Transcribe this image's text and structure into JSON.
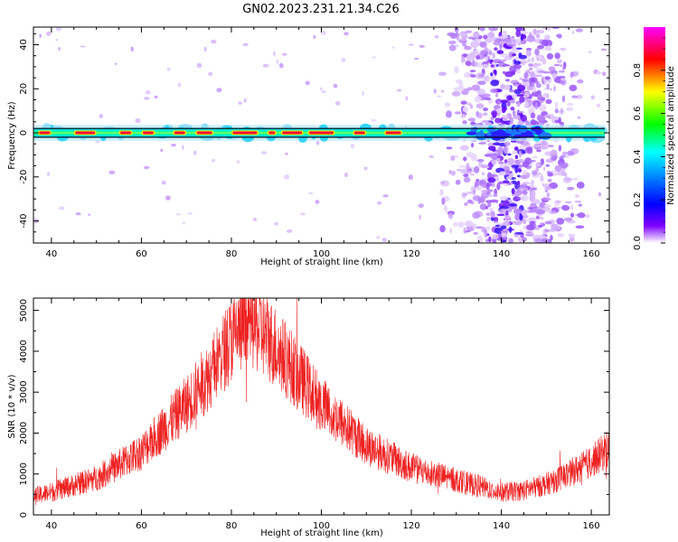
{
  "figure": {
    "title": "GN02.2023.231.21.34.C26"
  },
  "chart_data": [
    {
      "type": "heatmap",
      "xlabel": "Height of straight line (km)",
      "ylabel": "Frequency (Hz)",
      "xlim": [
        36,
        164
      ],
      "ylim": [
        -50,
        48
      ],
      "xticks": [
        40,
        60,
        80,
        100,
        120,
        140,
        160
      ],
      "yticks": [
        -40,
        -20,
        0,
        20,
        40
      ],
      "band": {
        "center_hz": 0,
        "halfwidth_hz": 2,
        "x_start_km": 36,
        "x_end_km": 163,
        "hot_segments_km": [
          [
            37,
            40
          ],
          [
            45,
            50
          ],
          [
            55,
            58
          ],
          [
            60,
            63
          ],
          [
            67,
            70
          ],
          [
            72,
            76
          ],
          [
            80,
            86
          ],
          [
            88,
            90
          ],
          [
            91,
            96
          ],
          [
            97,
            103
          ],
          [
            107,
            110
          ],
          [
            114,
            118
          ]
        ],
        "dark_segment_km": [
          133,
          150
        ]
      },
      "scatter_region_km": [
        125,
        158
      ],
      "colorbar": {
        "label": "Normalized spectral amplitude",
        "ticks": [
          0.0,
          0.2,
          0.4,
          0.6,
          0.8
        ],
        "range": [
          0,
          1
        ],
        "colors": [
          "#ffffff",
          "#7f00ff",
          "#0000ff",
          "#00ffff",
          "#00ff00",
          "#ffff00",
          "#ff0000",
          "#ff00ff"
        ]
      }
    },
    {
      "type": "line",
      "xlabel": "Height of straight line (km)",
      "ylabel": "SNR (10 * v/v)",
      "xlim": [
        36,
        164
      ],
      "ylim": [
        0,
        5300
      ],
      "xticks": [
        40,
        60,
        80,
        100,
        120,
        140,
        160
      ],
      "yticks": [
        0,
        1000,
        2000,
        3000,
        4000,
        5000
      ],
      "color": "#ee2222",
      "envelope": {
        "x": [
          36,
          40,
          50,
          60,
          70,
          75,
          80,
          84,
          88,
          95,
          100,
          110,
          120,
          130,
          140,
          145,
          150,
          155,
          160,
          164
        ],
        "y": [
          450,
          560,
          900,
          1550,
          2700,
          3400,
          4300,
          4700,
          4350,
          3400,
          2700,
          1700,
          1150,
          850,
          550,
          600,
          750,
          1000,
          1300,
          1650
        ]
      }
    }
  ]
}
